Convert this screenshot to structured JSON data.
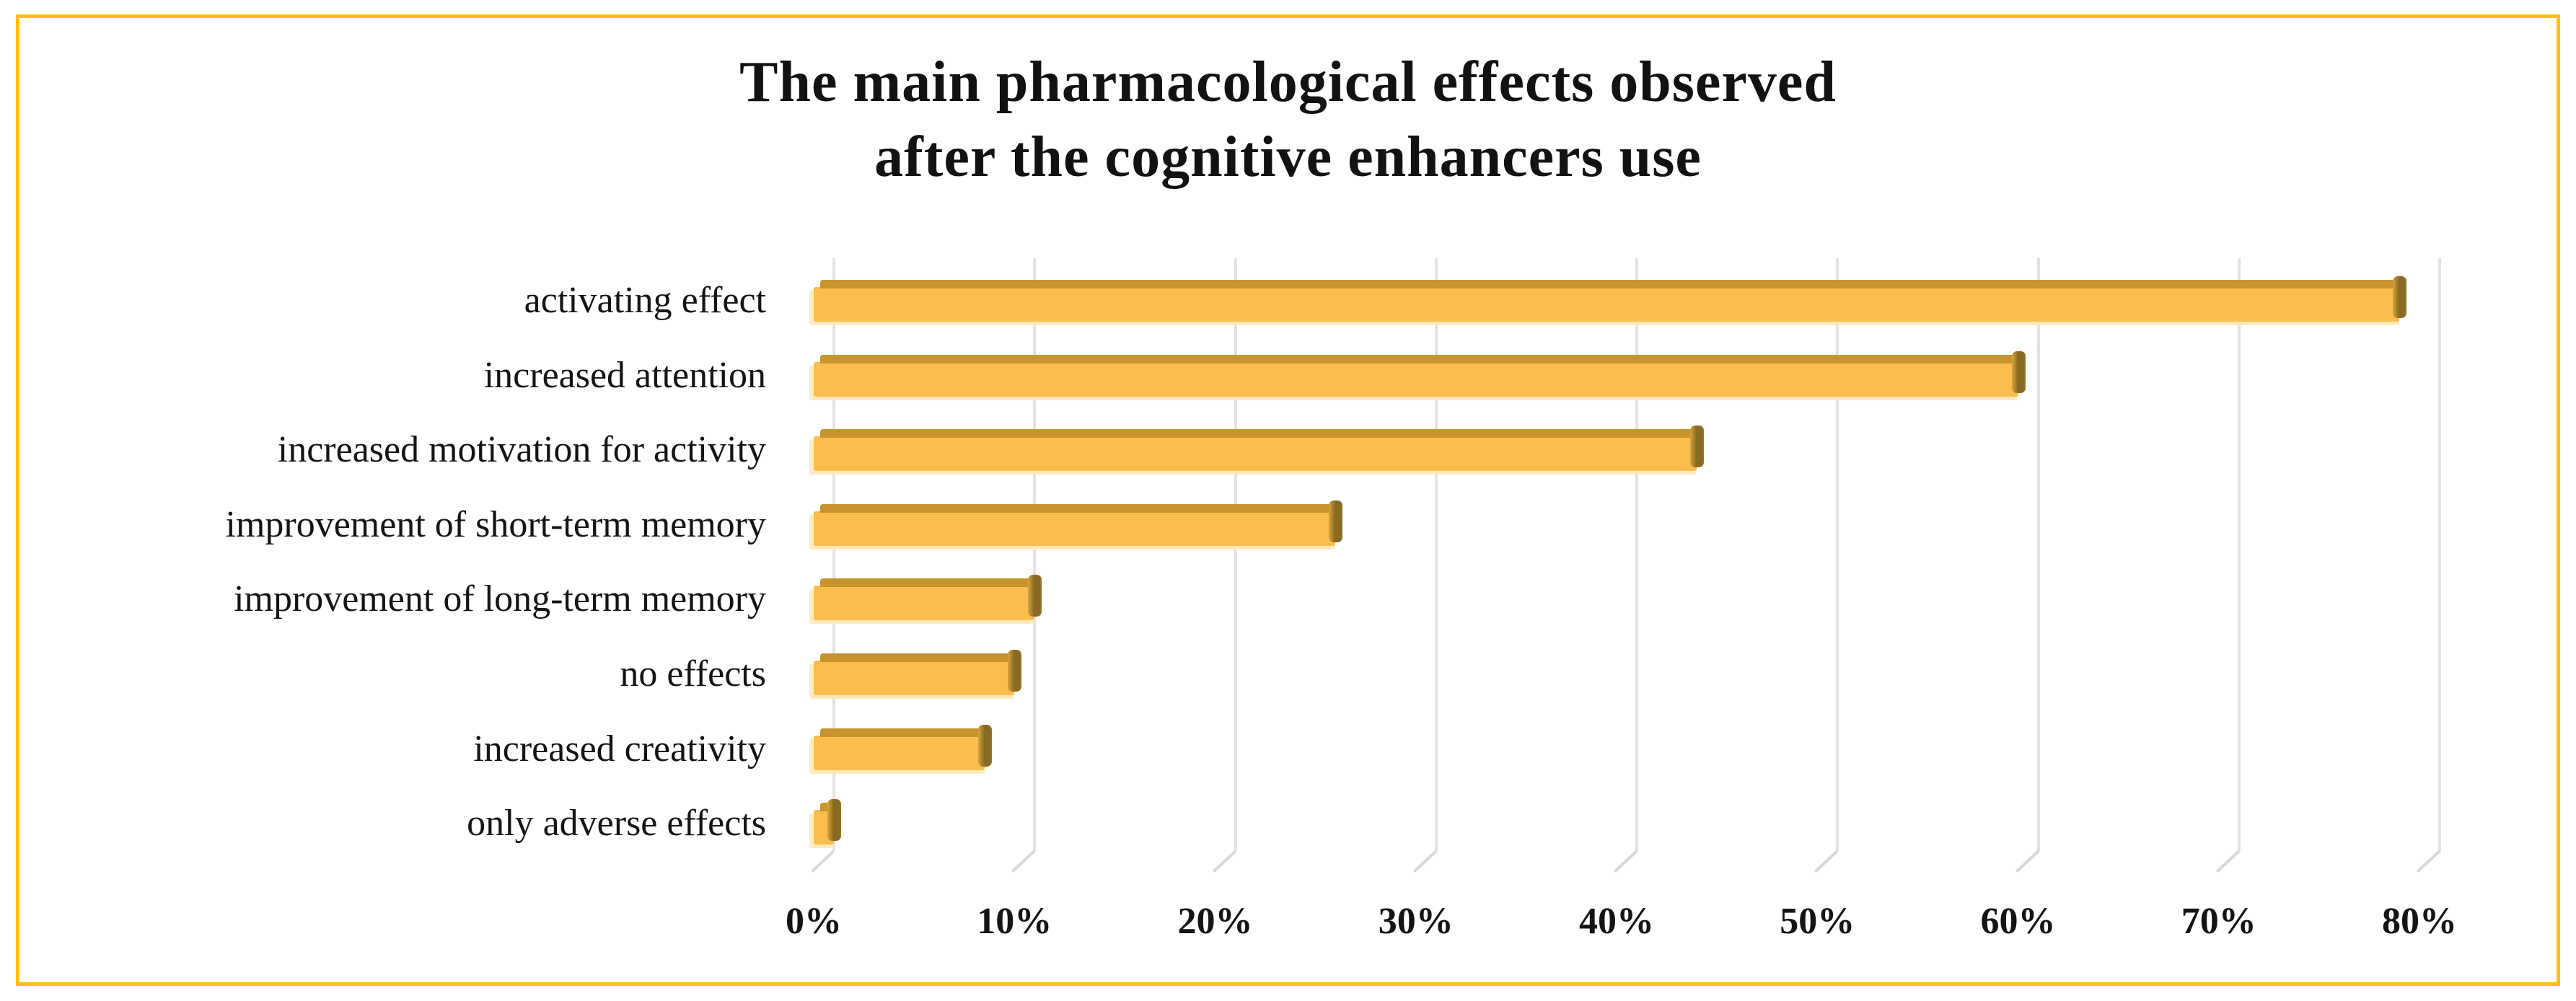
{
  "frame": {
    "border_color": "#FEC10E",
    "background": "#FFFFFF"
  },
  "title": {
    "line1": "The main pharmacological effects observed",
    "line2": "after the cognitive enhancers use"
  },
  "chart_data": {
    "type": "bar",
    "orientation": "horizontal",
    "style": "3d-bar",
    "title": "The main pharmacological effects observed after the cognitive enhancers use",
    "categories": [
      "activating effect",
      "increased attention",
      "increased motivation for activity",
      "improvement of short-term memory",
      "improvement of long-term memory",
      "no effects",
      "increased creativity",
      "only adverse effects"
    ],
    "values": [
      79,
      60,
      44,
      26,
      11,
      10,
      8.5,
      1
    ],
    "value_unit": "percent",
    "xlabel": "",
    "ylabel": "",
    "xlim": [
      0,
      80
    ],
    "x_tick_step": 10,
    "x_tick_labels": [
      "0%",
      "10%",
      "20%",
      "30%",
      "40%",
      "50%",
      "60%",
      "70%",
      "80%"
    ],
    "grid": "vertical-gridlines",
    "legend": "none",
    "colors": {
      "bar_face": "#FBBE4E",
      "bar_top": "#C7942E",
      "bar_end_cap": "#8A6B24",
      "gridline": "#E3E3E3",
      "text": "#141414",
      "frame_border": "#FEC10E"
    }
  }
}
